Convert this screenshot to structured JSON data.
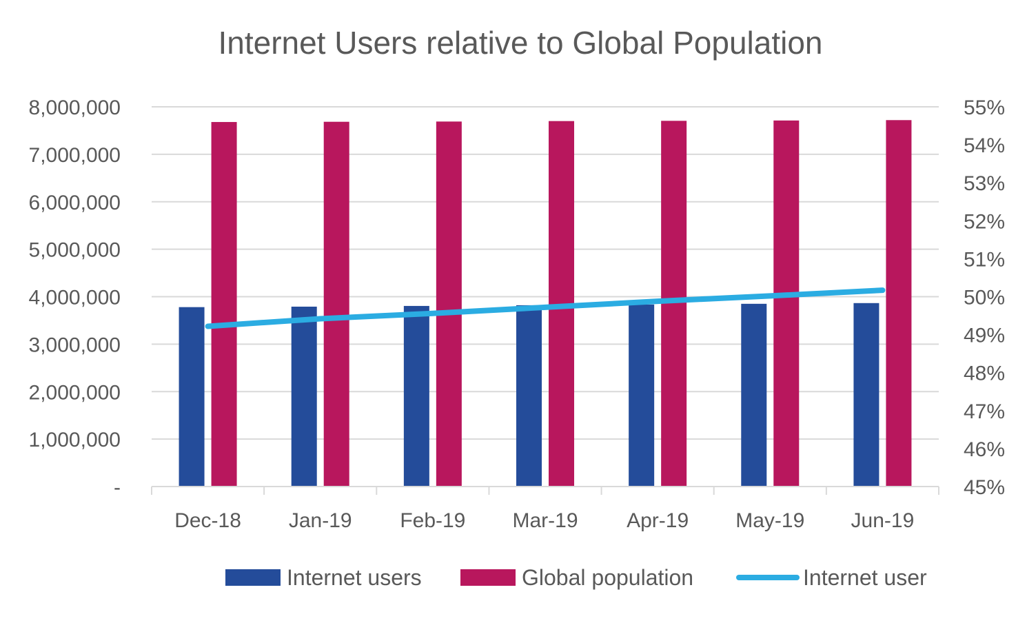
{
  "chart_data": {
    "type": "bar",
    "title": "Internet Users relative to Global Population",
    "categories": [
      "Dec-18",
      "Jan-19",
      "Feb-19",
      "Mar-19",
      "Apr-19",
      "May-19",
      "Jun-19"
    ],
    "y_left": {
      "ylim": [
        0,
        8000000
      ],
      "ticks": [
        0,
        1000000,
        2000000,
        3000000,
        4000000,
        5000000,
        6000000,
        7000000,
        8000000
      ],
      "tick_labels": [
        "-",
        "1,000,000",
        "2,000,000",
        "3,000,000",
        "4,000,000",
        "5,000,000",
        "6,000,000",
        "7,000,000",
        "8,000,000"
      ]
    },
    "y_right": {
      "ylim": [
        45,
        55
      ],
      "ticks": [
        45,
        46,
        47,
        48,
        49,
        50,
        51,
        52,
        53,
        54,
        55
      ],
      "tick_labels": [
        "45%",
        "46%",
        "47%",
        "48%",
        "49%",
        "50%",
        "51%",
        "52%",
        "53%",
        "54%",
        "55%"
      ]
    },
    "series": [
      {
        "name": "Internet users",
        "type": "bar",
        "axis": "left",
        "color": "#244C9A",
        "values": [
          3780000,
          3790000,
          3805000,
          3820000,
          3835000,
          3850000,
          3865000
        ]
      },
      {
        "name": "Global population",
        "type": "bar",
        "axis": "left",
        "color": "#B8175D",
        "values": [
          7680000,
          7685000,
          7690000,
          7700000,
          7705000,
          7712000,
          7720000
        ]
      },
      {
        "name": "Internet user",
        "type": "line",
        "axis": "right",
        "color": "#2BACE2",
        "values": [
          49.22,
          49.42,
          49.56,
          49.72,
          49.88,
          50.02,
          50.17
        ]
      }
    ],
    "grid": true,
    "legend_position": "bottom"
  }
}
